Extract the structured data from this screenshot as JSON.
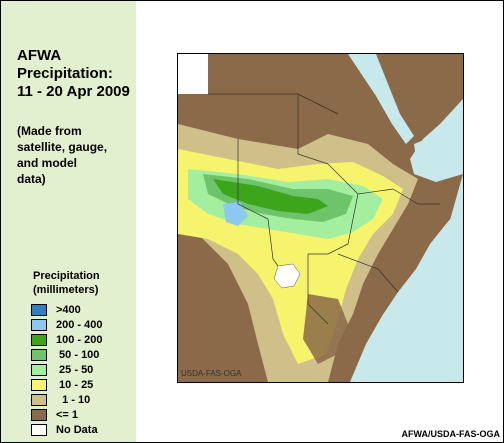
{
  "title": {
    "line1": "AFWA",
    "line2": "Precipitation:",
    "line3": "11 - 20 Apr 2009"
  },
  "note": {
    "line1": "(Made from",
    "line2": "satellite, gauge,",
    "line3": "and model",
    "line4": "data)"
  },
  "legend": {
    "title_line1": "Precipitation",
    "title_line2": "(millimeters)",
    "items": [
      {
        "label": ">400",
        "color": "#2f7fc1"
      },
      {
        "label": "200 - 400",
        "color": "#8cc8ef"
      },
      {
        "label": "100 - 200",
        "color": "#3ca51c"
      },
      {
        "label": " 50 - 100",
        "color": "#6ec46a"
      },
      {
        "label": " 25 - 50",
        "color": "#a4eea0"
      },
      {
        "label": " 10 - 25",
        "color": "#f6f46c"
      },
      {
        "label": "  1 - 10",
        "color": "#cfc08a"
      },
      {
        "label": "<= 1",
        "color": "#8a6a48"
      },
      {
        "label": "No Data",
        "color": "#ffffff"
      }
    ]
  },
  "map": {
    "watermark": "USDA-FAS-OGA",
    "ocean_color": "#c7e9ec",
    "border_color": "#333333"
  },
  "credit": "AFWA/USDA-FAS-OGA"
}
